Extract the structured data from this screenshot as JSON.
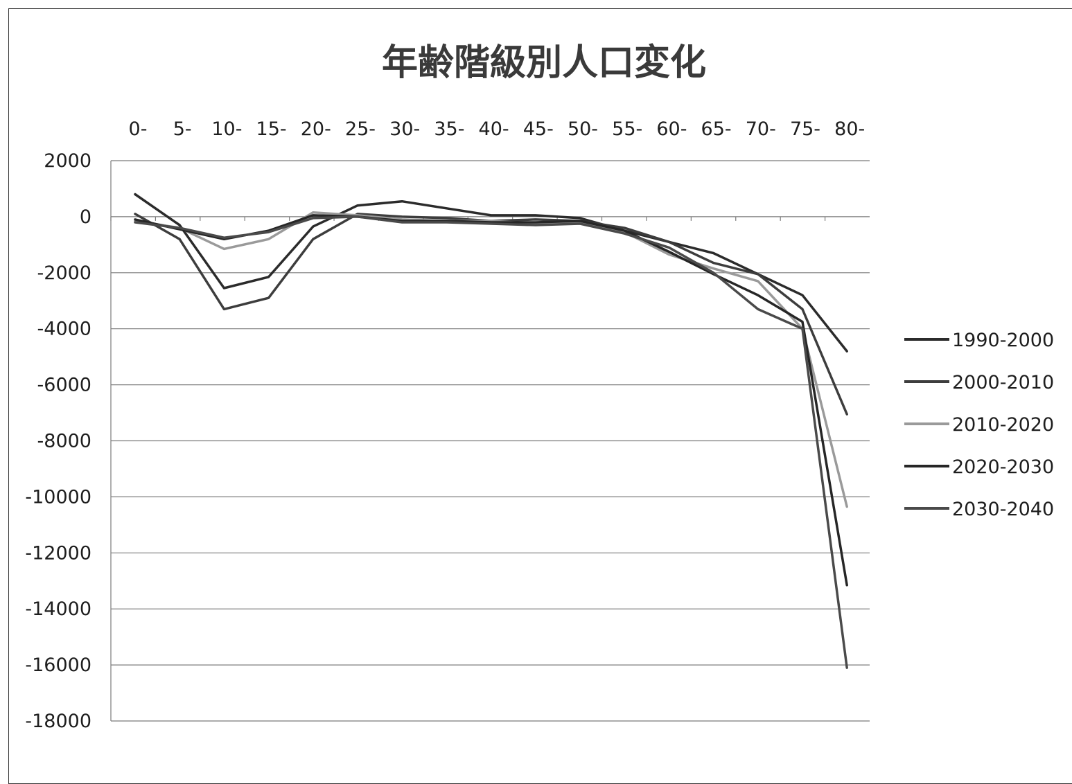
{
  "chart_data": {
    "type": "line",
    "title": "年齢階級別人口変化",
    "xlabel": "",
    "ylabel": "",
    "categories": [
      "0-",
      "5-",
      "10-",
      "15-",
      "20-",
      "25-",
      "30-",
      "35-",
      "40-",
      "45-",
      "50-",
      "55-",
      "60-",
      "65-",
      "70-",
      "75-",
      "80-"
    ],
    "ylim": [
      -18000,
      2000
    ],
    "yticks": [
      2000,
      0,
      -2000,
      -4000,
      -6000,
      -8000,
      -10000,
      -12000,
      -14000,
      -16000,
      -18000
    ],
    "xaxis_position": "top",
    "grid": "horizontal",
    "legend_position": "right",
    "series": [
      {
        "name": "1990-2000",
        "color": "#2b2b2b",
        "values": [
          800,
          -300,
          -2550,
          -2150,
          -350,
          400,
          550,
          300,
          50,
          50,
          -50,
          -500,
          -900,
          -1300,
          -2050,
          -2800,
          -4800
        ]
      },
      {
        "name": "2000-2010",
        "color": "#3d3d3d",
        "values": [
          100,
          -800,
          -3300,
          -2900,
          -800,
          100,
          0,
          -50,
          -150,
          -100,
          -150,
          -400,
          -900,
          -1650,
          -2050,
          -3300,
          -7050
        ]
      },
      {
        "name": "2010-2020",
        "color": "#9a9a9a",
        "values": [
          -150,
          -400,
          -1150,
          -800,
          150,
          50,
          -100,
          -150,
          -150,
          -250,
          -200,
          -550,
          -1350,
          -1850,
          -2300,
          -4000,
          -10350
        ]
      },
      {
        "name": "2020-2030",
        "color": "#262626",
        "values": [
          -100,
          -450,
          -800,
          -500,
          50,
          0,
          -150,
          -150,
          -200,
          -200,
          -150,
          -500,
          -1250,
          -2050,
          -2800,
          -3750,
          -13150
        ]
      },
      {
        "name": "2030-2040",
        "color": "#4a4a4a",
        "values": [
          -200,
          -400,
          -750,
          -550,
          -50,
          0,
          -200,
          -200,
          -250,
          -300,
          -250,
          -600,
          -1100,
          -2000,
          -3300,
          -4000,
          -16100
        ]
      }
    ]
  }
}
